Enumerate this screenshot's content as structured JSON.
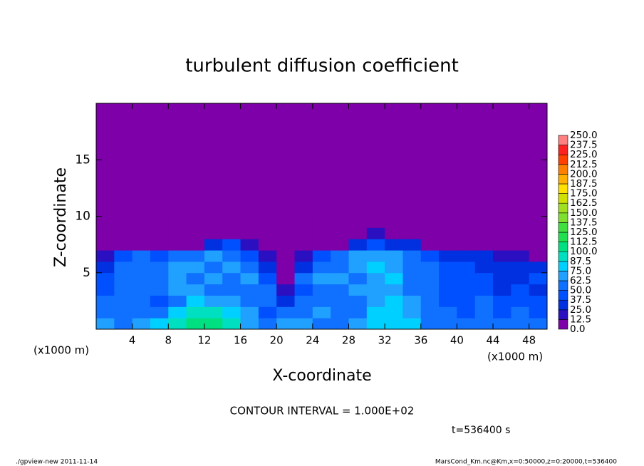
{
  "chart_data": {
    "type": "heatmap",
    "title": "turbulent diffusion coefficient",
    "xlabel": "X-coordinate",
    "ylabel": "Z-coordinate",
    "x_unit_left": "(x1000 m)",
    "x_unit_right": "(x1000 m)",
    "annotation": "CONTOUR INTERVAL = 1.000E+02",
    "time_label": "t=536400 s",
    "footer_left": "./gpview-new  2011-11-14",
    "footer_right": "MarsCond_Km.nc@Km,x=0:50000,z=0:20000,t=536400",
    "xlim": [
      0,
      50
    ],
    "ylim": [
      0,
      20
    ],
    "xticks": [
      4,
      8,
      12,
      16,
      20,
      24,
      28,
      32,
      36,
      40,
      44,
      48
    ],
    "yticks": [
      5,
      10,
      15
    ],
    "x": [
      1,
      3,
      5,
      7,
      9,
      11,
      13,
      15,
      17,
      19,
      21,
      23,
      25,
      27,
      29,
      31,
      33,
      35,
      37,
      39,
      41,
      43,
      45,
      47,
      49
    ],
    "y": [
      0.5,
      1.5,
      2.5,
      3.5,
      4.5,
      5.5,
      6.5,
      7.5,
      8.5,
      9.5
    ],
    "z": [
      [
        70,
        55,
        65,
        75,
        90,
        105,
        105,
        95,
        70,
        60,
        70,
        65,
        60,
        60,
        70,
        80,
        85,
        75,
        60,
        55,
        50,
        55,
        55,
        60,
        55
      ],
      [
        60,
        50,
        55,
        60,
        75,
        95,
        90,
        80,
        65,
        45,
        60,
        55,
        65,
        60,
        60,
        75,
        80,
        70,
        55,
        50,
        45,
        50,
        45,
        50,
        45
      ],
      [
        55,
        60,
        50,
        45,
        60,
        80,
        70,
        65,
        60,
        55,
        35,
        50,
        60,
        55,
        55,
        70,
        75,
        65,
        50,
        40,
        45,
        50,
        40,
        45,
        40
      ],
      [
        45,
        55,
        60,
        50,
        65,
        70,
        60,
        55,
        60,
        60,
        20,
        45,
        55,
        60,
        65,
        70,
        70,
        60,
        55,
        45,
        40,
        45,
        35,
        40,
        35
      ],
      [
        40,
        60,
        55,
        55,
        70,
        60,
        65,
        60,
        65,
        40,
        10,
        50,
        65,
        70,
        60,
        70,
        75,
        60,
        55,
        45,
        45,
        40,
        35,
        35,
        40
      ],
      [
        35,
        55,
        60,
        55,
        65,
        65,
        60,
        70,
        55,
        30,
        5,
        30,
        55,
        60,
        70,
        75,
        70,
        60,
        55,
        45,
        40,
        35,
        30,
        30,
        30
      ],
      [
        20,
        45,
        50,
        45,
        50,
        60,
        65,
        60,
        45,
        15,
        0,
        15,
        45,
        55,
        65,
        70,
        65,
        55,
        45,
        35,
        30,
        25,
        20,
        15,
        10
      ],
      [
        0,
        0,
        0,
        0,
        0,
        10,
        30,
        40,
        20,
        0,
        0,
        0,
        0,
        10,
        35,
        40,
        30,
        25,
        10,
        0,
        0,
        0,
        0,
        0,
        0
      ],
      [
        0,
        0,
        0,
        0,
        0,
        0,
        0,
        10,
        0,
        0,
        0,
        0,
        0,
        0,
        5,
        15,
        5,
        0,
        0,
        0,
        0,
        0,
        0,
        0,
        0
      ],
      [
        0,
        0,
        0,
        0,
        0,
        0,
        0,
        0,
        0,
        0,
        0,
        0,
        0,
        0,
        0,
        0,
        0,
        0,
        0,
        0,
        0,
        0,
        0,
        0,
        0
      ]
    ],
    "levels": [
      {
        "value": 0,
        "label": "0.0"
      },
      12.5,
      {
        "value": 25,
        "label": "25.0"
      },
      37.5,
      {
        "value": 50,
        "label": "50.0"
      },
      62.5,
      {
        "value": 75,
        "label": "75.0"
      },
      87.5,
      {
        "value": 100,
        "label": "100.0"
      },
      112.5,
      {
        "value": 125,
        "label": "125.0"
      },
      137.5,
      {
        "value": 150,
        "label": "150.0"
      },
      162.5,
      {
        "value": 175,
        "label": "175.0"
      },
      187.5,
      {
        "value": 200,
        "label": "200.0"
      },
      212.5,
      {
        "value": 225,
        "label": "225.0"
      },
      237.5,
      {
        "value": 250,
        "label": "250.0"
      }
    ],
    "colors": [
      "#7d00a8",
      "#2a10c0",
      "#0030e0",
      "#0050ff",
      "#1070ff",
      "#20a0ff",
      "#00d0ff",
      "#00e0c0",
      "#00e080",
      "#20e050",
      "#40e040",
      "#80e030",
      "#a0e020",
      "#d0e000",
      "#ffe000",
      "#ffb000",
      "#ff8000",
      "#ff4000",
      "#ff2020",
      "#ff8080"
    ]
  }
}
